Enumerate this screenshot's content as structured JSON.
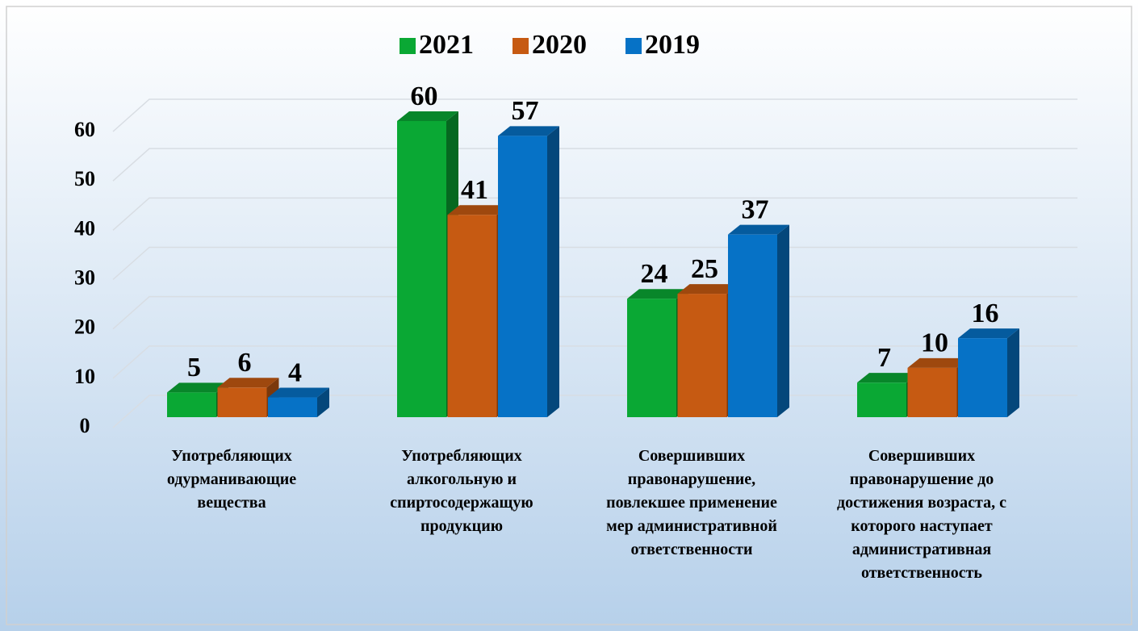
{
  "chart_data": {
    "type": "bar3d",
    "categories": [
      "Употребляющих одурманивающие вещества",
      "Употребляющих алкогольную и спиртосодержащую продукцию",
      "Совершивших правонарушение, повлекшее применение мер административной ответственности",
      "Совершивших правонарушение до достижения возраста, с которого наступает административная ответственность"
    ],
    "series": [
      {
        "name": "2021",
        "color": "#0aa834",
        "values": [
          5,
          60,
          24,
          7
        ]
      },
      {
        "name": "2020",
        "color": "#c65a12",
        "values": [
          6,
          41,
          25,
          10
        ]
      },
      {
        "name": "2019",
        "color": "#0672c6",
        "values": [
          4,
          57,
          37,
          16
        ]
      }
    ],
    "ylim": [
      0,
      60
    ],
    "yticks": [
      0,
      10,
      20,
      30,
      40,
      50,
      60
    ],
    "grid": true,
    "legend": "top"
  }
}
